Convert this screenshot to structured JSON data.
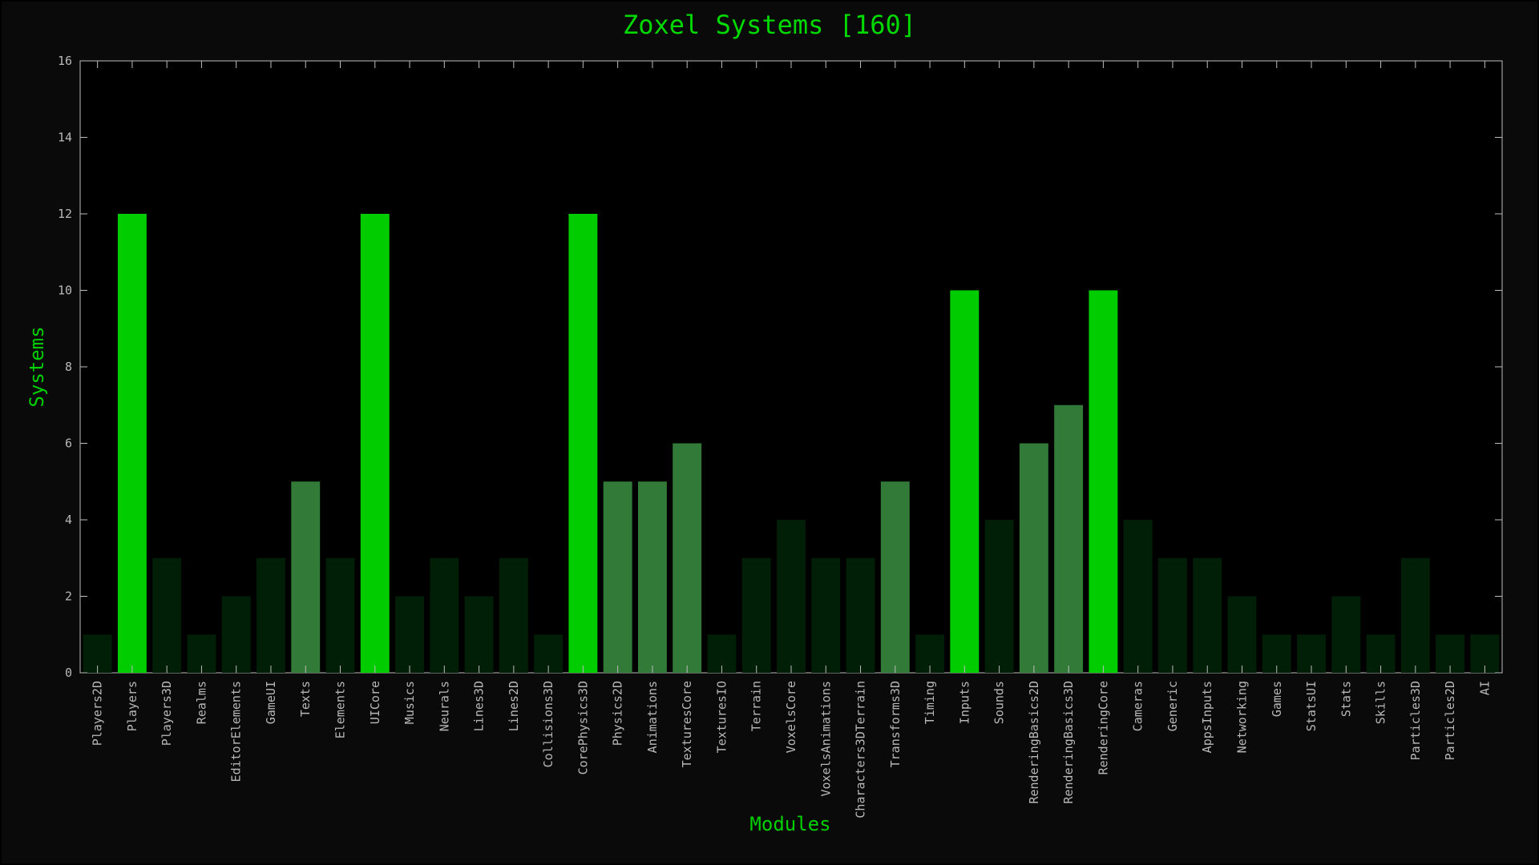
{
  "chart_data": {
    "type": "bar",
    "title": "Zoxel Systems [160]",
    "xlabel": "Modules",
    "ylabel": "Systems",
    "ylim": [
      0,
      16
    ],
    "yticks": [
      0,
      2,
      4,
      6,
      8,
      10,
      12,
      14,
      16
    ],
    "grid": false,
    "categories": [
      "Players2D",
      "Players",
      "Players3D",
      "Realms",
      "EditorElements",
      "GameUI",
      "Texts",
      "Elements",
      "UICore",
      "Musics",
      "Neurals",
      "Lines3D",
      "Lines2D",
      "Collisions3D",
      "CorePhysics3D",
      "Physics2D",
      "Animations",
      "TexturesCore",
      "TexturesIO",
      "Terrain",
      "VoxelsCore",
      "VoxelsAnimations",
      "Characters3DTerrain",
      "Transforms3D",
      "Timing",
      "Inputs",
      "Sounds",
      "RenderingBasics2D",
      "RenderingBasics3D",
      "RenderingCore",
      "Cameras",
      "Generic",
      "AppsInputs",
      "Networking",
      "Games",
      "StatsUI",
      "Stats",
      "Skills",
      "Particles3D",
      "Particles2D",
      "AI"
    ],
    "values": [
      1,
      12,
      3,
      1,
      2,
      3,
      5,
      3,
      12,
      2,
      3,
      2,
      3,
      1,
      12,
      5,
      5,
      6,
      1,
      3,
      4,
      3,
      3,
      5,
      1,
      10,
      4,
      6,
      7,
      10,
      4,
      3,
      3,
      2,
      1,
      1,
      2,
      1,
      3,
      1,
      1
    ],
    "colors": {
      "background": "#0a0a0a",
      "plot_background": "#000000",
      "axis": "#bdbdbd",
      "text": "#00d800",
      "tick_text": "#b8b8b8",
      "bar_high": "#00cc00",
      "bar_mid": "#317a37",
      "bar_low": "#011e06"
    }
  }
}
